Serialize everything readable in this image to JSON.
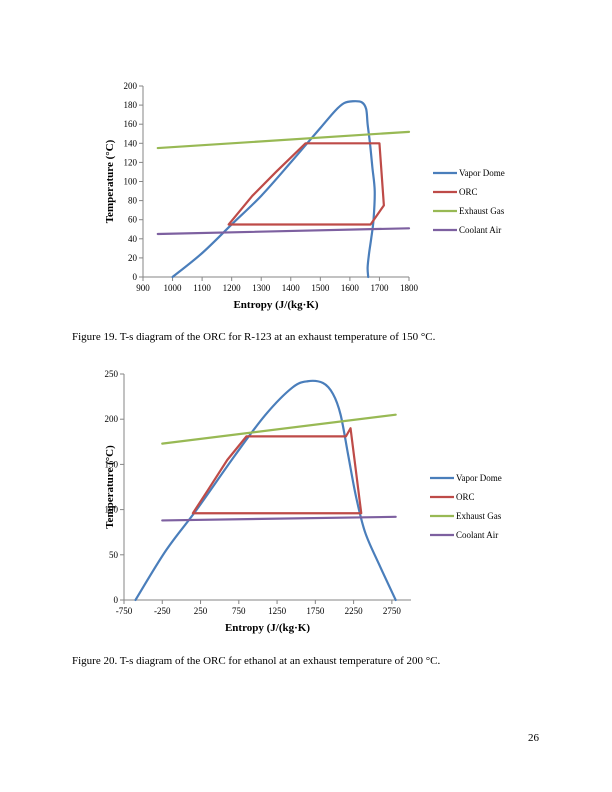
{
  "figures": [
    {
      "caption": "Figure 19. T-s diagram of the ORC for R-123 at an exhaust temperature of 150 °C."
    },
    {
      "caption": "Figure 20. T-s diagram of the ORC for ethanol at an exhaust temperature of 200 °C."
    }
  ],
  "page_number": "26",
  "chart_data": [
    {
      "type": "line",
      "xlabel": "Entropy (J/(kg·K)",
      "ylabel": "Temperature (°C)",
      "xlim": [
        900,
        1800
      ],
      "ylim": [
        0,
        200
      ],
      "xticks": [
        900,
        1000,
        1100,
        1200,
        1300,
        1400,
        1500,
        1600,
        1700,
        1800
      ],
      "yticks": [
        0,
        20,
        40,
        60,
        80,
        100,
        120,
        140,
        160,
        180,
        200
      ],
      "legend_position": "right",
      "series": [
        {
          "name": "Vapor Dome",
          "color": "#4a7ebb",
          "smooth": true,
          "points": [
            [
              1000,
              0
            ],
            [
              1100,
              25
            ],
            [
              1200,
              55
            ],
            [
              1300,
              85
            ],
            [
              1400,
              120
            ],
            [
              1450,
              138
            ],
            [
              1500,
              156
            ],
            [
              1550,
              174
            ],
            [
              1580,
              182
            ],
            [
              1610,
              184
            ],
            [
              1640,
              183
            ],
            [
              1655,
              176
            ],
            [
              1660,
              160
            ],
            [
              1668,
              140
            ],
            [
              1676,
              115
            ],
            [
              1684,
              90
            ],
            [
              1680,
              60
            ],
            [
              1672,
              40
            ],
            [
              1665,
              25
            ],
            [
              1660,
              10
            ],
            [
              1662,
              0
            ]
          ]
        },
        {
          "name": "ORC",
          "color": "#be4b48",
          "smooth": false,
          "points": [
            [
              1190,
              55
            ],
            [
              1270,
              85
            ],
            [
              1350,
              110
            ],
            [
              1450,
              140
            ],
            [
              1700,
              140
            ],
            [
              1715,
              75
            ],
            [
              1670,
              55
            ],
            [
              1190,
              55
            ]
          ]
        },
        {
          "name": "Exhaust Gas",
          "color": "#98b954",
          "smooth": false,
          "points": [
            [
              950,
              135
            ],
            [
              1800,
              152
            ]
          ]
        },
        {
          "name": "Coolant Air",
          "color": "#7d60a0",
          "smooth": false,
          "points": [
            [
              950,
              45
            ],
            [
              1800,
              51
            ]
          ]
        }
      ]
    },
    {
      "type": "line",
      "xlabel": "Entropy (J/(kg·K)",
      "ylabel": "Temperature (°C)",
      "xlim": [
        -750,
        3000
      ],
      "ylim": [
        0,
        250
      ],
      "xticks": [
        -750,
        -250,
        250,
        750,
        1250,
        1750,
        2250,
        2750
      ],
      "yticks": [
        0,
        50,
        100,
        150,
        200,
        250
      ],
      "legend_position": "right",
      "series": [
        {
          "name": "Vapor Dome",
          "color": "#4a7ebb",
          "smooth": true,
          "points": [
            [
              -600,
              0
            ],
            [
              -200,
              55
            ],
            [
              200,
              100
            ],
            [
              700,
              160
            ],
            [
              1100,
              205
            ],
            [
              1450,
              235
            ],
            [
              1650,
              242
            ],
            [
              1850,
              240
            ],
            [
              1980,
              228
            ],
            [
              2080,
              205
            ],
            [
              2180,
              160
            ],
            [
              2280,
              115
            ],
            [
              2400,
              75
            ],
            [
              2580,
              40
            ],
            [
              2800,
              0
            ]
          ]
        },
        {
          "name": "ORC",
          "color": "#be4b48",
          "smooth": false,
          "points": [
            [
              150,
              96
            ],
            [
              350,
              122
            ],
            [
              600,
              155
            ],
            [
              850,
              181
            ],
            [
              2150,
              181
            ],
            [
              2210,
              190
            ],
            [
              2350,
              96
            ],
            [
              150,
              96
            ]
          ]
        },
        {
          "name": "Exhaust Gas",
          "color": "#98b954",
          "smooth": false,
          "points": [
            [
              -250,
              173
            ],
            [
              2800,
              205
            ]
          ]
        },
        {
          "name": "Coolant Air",
          "color": "#7d60a0",
          "smooth": false,
          "points": [
            [
              -250,
              88
            ],
            [
              2800,
              92
            ]
          ]
        }
      ]
    }
  ]
}
